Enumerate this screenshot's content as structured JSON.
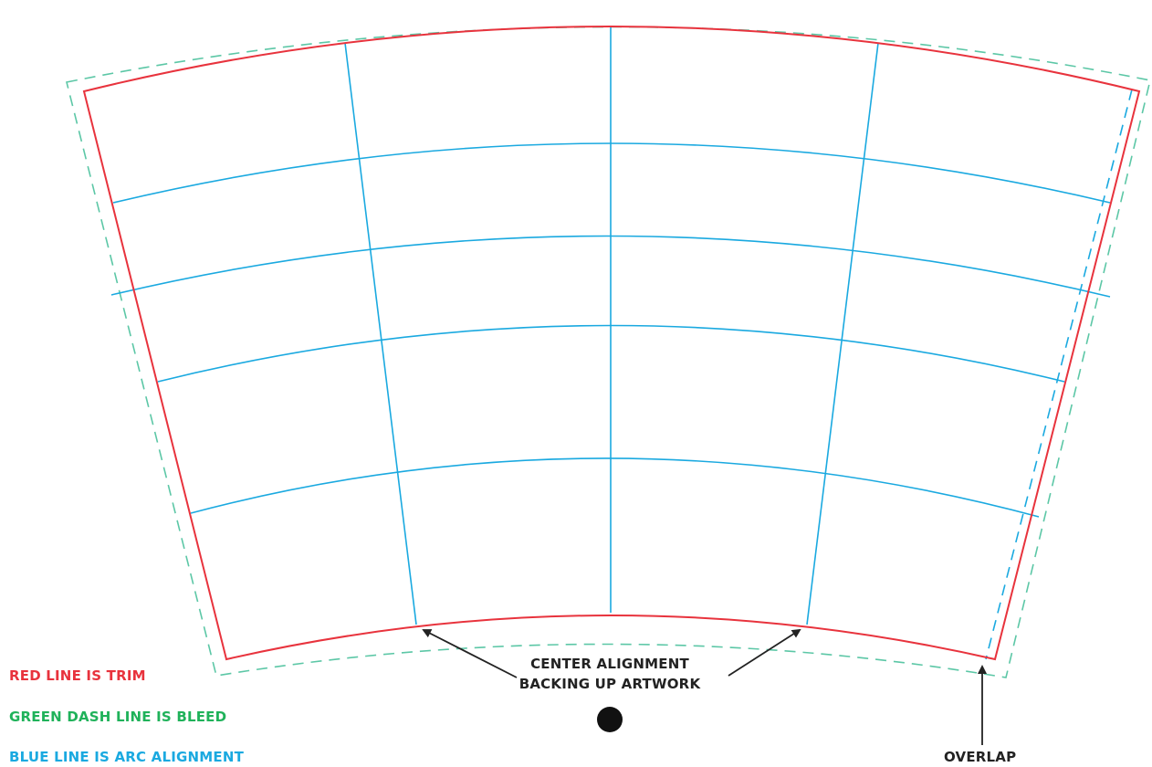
{
  "legend": {
    "trim": {
      "text": "RED LINE IS TRIM",
      "color": "#e8333d"
    },
    "bleed": {
      "text": "GREEN DASH LINE IS BLEED",
      "color": "#1fb25a"
    },
    "arc": {
      "text": "BLUE LINE IS ARC ALIGNMENT",
      "color": "#1aa9e0"
    }
  },
  "annotations": {
    "center_line1": "CENTER ALIGNMENT",
    "center_line2": "BACKING UP ARTWORK",
    "overlap": "OVERLAP"
  },
  "colors": {
    "trim": "#e8333d",
    "bleed": "#5cc7a6",
    "arc": "#1aa9e0",
    "arrow": "#222222"
  }
}
